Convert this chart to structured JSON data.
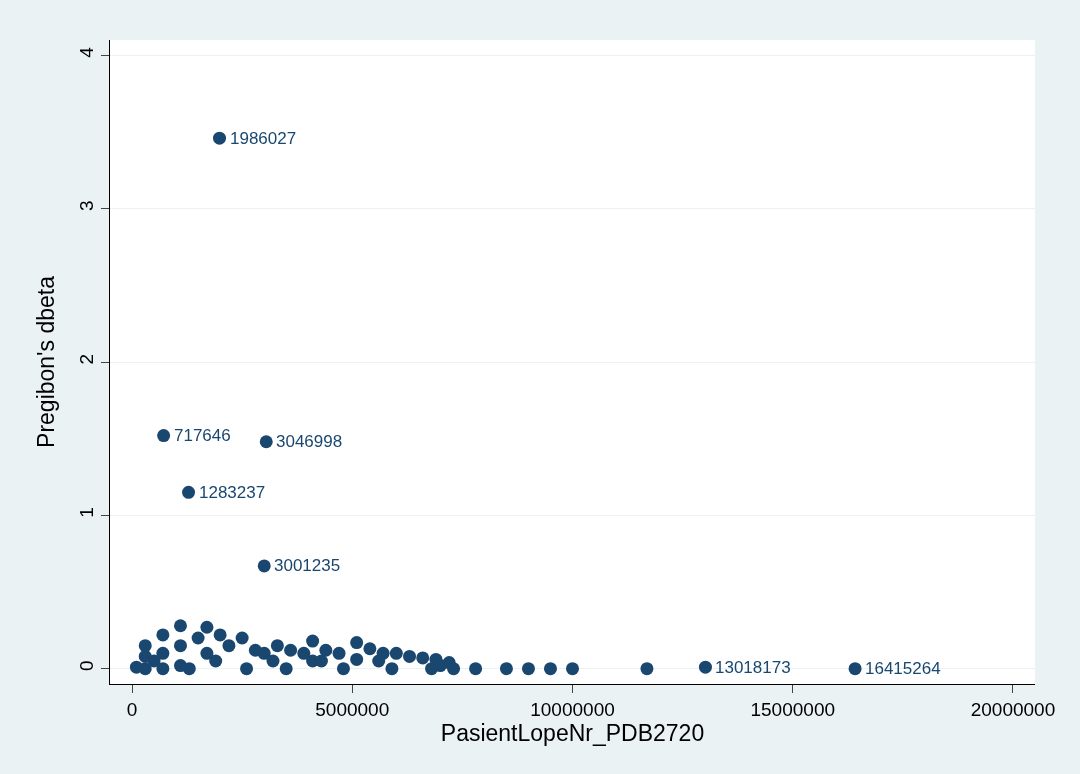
{
  "chart_data": {
    "type": "scatter",
    "xlabel": "PasientLopeNr_PDB2720",
    "ylabel": "Pregibon's dbeta",
    "xlim": [
      -500000,
      20500000
    ],
    "ylim": [
      -0.1,
      4.1
    ],
    "xticks": [
      0,
      5000000,
      10000000,
      15000000,
      20000000
    ],
    "yticks": [
      0,
      1,
      2,
      3,
      4
    ],
    "grid": "y",
    "marker": "circle",
    "series": [
      {
        "color": "#1a476f",
        "x": [
          100000,
          300000,
          300000,
          300000,
          700000,
          700000,
          700000,
          1100000,
          1100000,
          1100000,
          1500000,
          1700000,
          1700000,
          2000000,
          2200000,
          2500000,
          2800000,
          3000000,
          3300000,
          3600000,
          3900000,
          4100000,
          4100000,
          4400000,
          4700000,
          5100000,
          5100000,
          5400000,
          5700000,
          6000000,
          6300000,
          6600000,
          6900000,
          7200000,
          1300000,
          2600000,
          3500000,
          4800000,
          5900000,
          6800000,
          7000000,
          7300000,
          500000,
          1900000,
          3200000,
          4300000,
          5600000,
          7800000,
          8500000,
          9000000,
          9500000,
          10000000,
          1986027,
          717646,
          3046998,
          1283237,
          3001235,
          11690000,
          13018173,
          16415264
        ],
        "values": [
          0.01,
          0.15,
          0.08,
          0.0,
          0.22,
          0.1,
          0.0,
          0.28,
          0.15,
          0.02,
          0.2,
          0.27,
          0.1,
          0.22,
          0.15,
          0.2,
          0.12,
          0.1,
          0.15,
          0.12,
          0.1,
          0.18,
          0.05,
          0.12,
          0.1,
          0.17,
          0.06,
          0.13,
          0.1,
          0.1,
          0.08,
          0.07,
          0.06,
          0.04,
          0.0,
          0.0,
          0.0,
          0.0,
          0.0,
          0.0,
          0.02,
          0.0,
          0.05,
          0.05,
          0.05,
          0.05,
          0.05,
          0.0,
          0.0,
          0.0,
          0.0,
          0.0,
          3.46,
          1.52,
          1.48,
          1.15,
          0.67,
          0.0,
          0.01,
          0.0
        ]
      }
    ],
    "annotations": [
      {
        "text": "1986027",
        "x": 1986027,
        "y": 3.46
      },
      {
        "text": "717646",
        "x": 717646,
        "y": 1.52
      },
      {
        "text": "3046998",
        "x": 3046998,
        "y": 1.48
      },
      {
        "text": "1283237",
        "x": 1283237,
        "y": 1.15
      },
      {
        "text": "3001235",
        "x": 3001235,
        "y": 0.67
      },
      {
        "text": "13018173",
        "x": 13018173,
        "y": 0.01
      },
      {
        "text": "16415264",
        "x": 16415264,
        "y": 0.0
      }
    ]
  }
}
